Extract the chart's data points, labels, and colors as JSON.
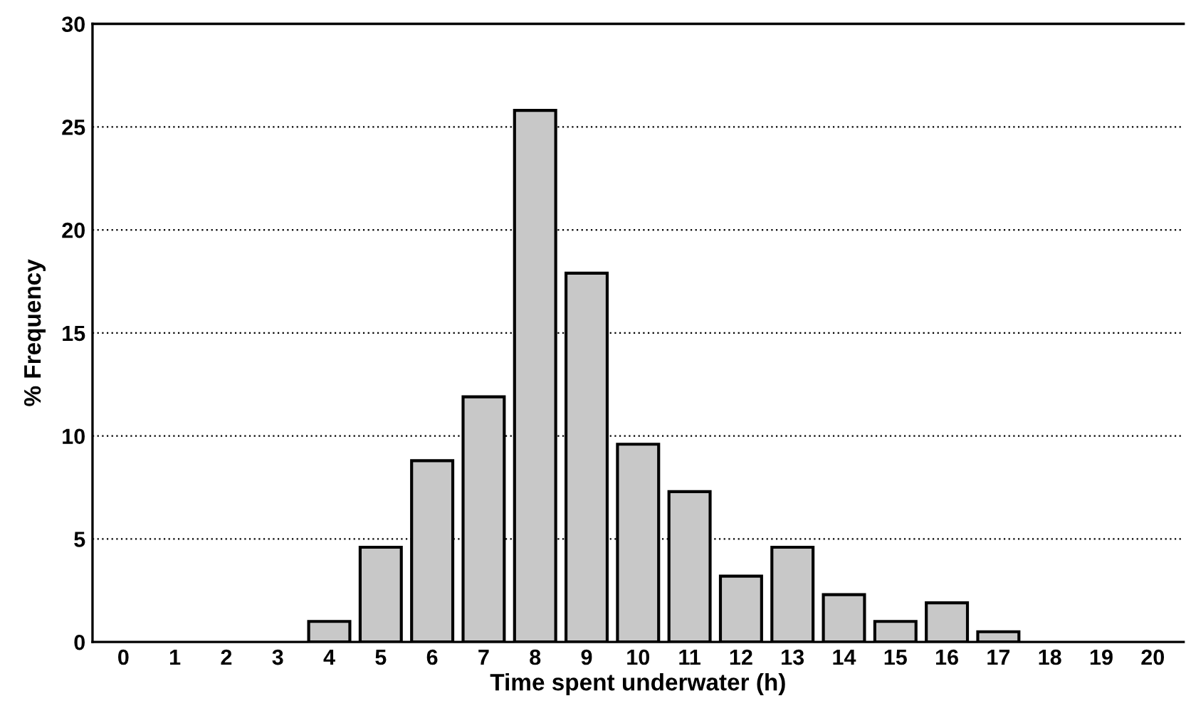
{
  "chart_data": {
    "type": "bar",
    "xlabel": "Time spent underwater (h)",
    "ylabel": "% Frequency",
    "categories": [
      "0",
      "1",
      "2",
      "3",
      "4",
      "5",
      "6",
      "7",
      "8",
      "9",
      "10",
      "11",
      "12",
      "13",
      "14",
      "15",
      "16",
      "17",
      "18",
      "19",
      "20"
    ],
    "values": [
      0,
      0,
      0,
      0,
      1.0,
      4.6,
      8.8,
      11.9,
      25.8,
      17.9,
      9.6,
      7.3,
      3.2,
      4.6,
      2.3,
      1.0,
      1.9,
      0.5,
      0,
      0,
      0
    ],
    "color": "#c8c8c8",
    "ylim": [
      0,
      30
    ],
    "yticks": [
      0,
      5,
      10,
      15,
      20,
      25,
      30
    ],
    "grid": "y"
  }
}
